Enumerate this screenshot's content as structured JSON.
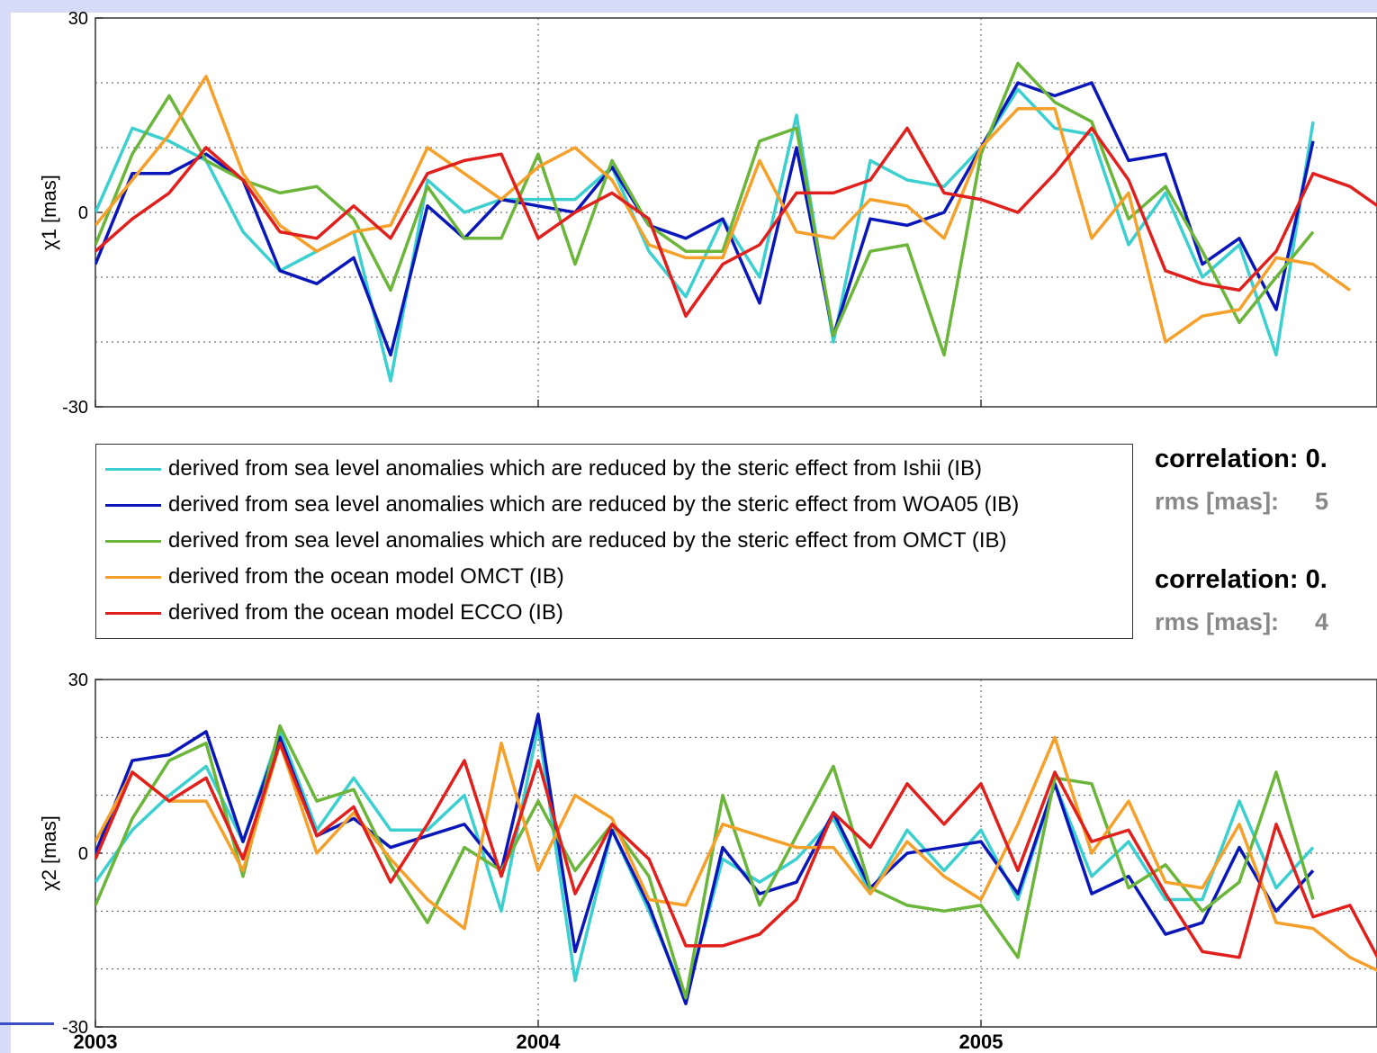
{
  "colors": {
    "ishii": "#3ccfd0",
    "woa05": "#0a17b8",
    "omct_steric": "#6ab53a",
    "omct": "#f5a02a",
    "ecco": "#e0201c"
  },
  "chart_data": [
    {
      "type": "line",
      "ylabel": "χ1 [mas]",
      "ylim": [
        -30,
        30
      ],
      "yticks": [
        -30,
        0,
        30
      ],
      "x_ticks": [
        "2003",
        "2004",
        "2005"
      ],
      "xlim_months": [
        0,
        36
      ],
      "grid": true,
      "series": [
        {
          "name": "derived from sea level anomalies which are reduced by the steric effect from Ishii (IB)",
          "color_key": "ishii",
          "values": [
            0,
            13,
            11,
            8,
            -3,
            -9,
            -6,
            -3,
            -26,
            5,
            0,
            2,
            2,
            2,
            7,
            -6,
            -13,
            -1,
            -10,
            15,
            -20,
            8,
            5,
            4,
            10,
            19,
            13,
            12,
            -5,
            3,
            -10,
            -5,
            -22,
            14
          ]
        },
        {
          "name": "derived from sea level anomalies which are reduced by the steric effect from WOA05 (IB)",
          "color_key": "woa05",
          "values": [
            -8,
            6,
            6,
            9,
            5,
            -9,
            -11,
            -7,
            -22,
            1,
            -4,
            2,
            1,
            0,
            7,
            -2,
            -4,
            -1,
            -14,
            10,
            -19,
            -1,
            -2,
            0,
            10,
            20,
            18,
            20,
            8,
            9,
            -8,
            -4,
            -15,
            11
          ]
        },
        {
          "name": "derived from sea level anomalies which are reduced by the steric effect from OMCT (IB)",
          "color_key": "omct_steric",
          "values": [
            -5,
            9,
            18,
            8,
            5,
            3,
            4,
            -1,
            -12,
            4,
            -4,
            -4,
            9,
            -8,
            8,
            -2,
            -6,
            -6,
            11,
            13,
            -19,
            -6,
            -5,
            -22,
            9,
            23,
            17,
            14,
            -1,
            4,
            -6,
            -17,
            -10,
            -3
          ]
        },
        {
          "name": "derived from the ocean model OMCT (IB)",
          "color_key": "omct",
          "values": [
            -2,
            5,
            12,
            21,
            6,
            -2,
            -6,
            -3,
            -2,
            10,
            6,
            2,
            7,
            10,
            5,
            -5,
            -7,
            -7,
            8,
            -3,
            -4,
            2,
            1,
            -4,
            10,
            16,
            16,
            -4,
            3,
            -20,
            -16,
            -15,
            -7,
            -8,
            -12
          ]
        },
        {
          "name": "derived from the ocean model ECCO (IB)",
          "color_key": "ecco",
          "values": [
            -6,
            -1,
            3,
            10,
            5,
            -3,
            -4,
            1,
            -4,
            6,
            8,
            9,
            -4,
            0,
            3,
            -1,
            -16,
            -8,
            -5,
            3,
            3,
            5,
            13,
            3,
            2,
            0,
            6,
            13,
            5,
            -9,
            -11,
            -12,
            -6,
            6,
            4,
            0
          ]
        }
      ]
    },
    {
      "type": "line",
      "ylabel": "χ2 [mas]",
      "ylim": [
        -30,
        30
      ],
      "yticks": [
        -30,
        0,
        30
      ],
      "x_ticks": [
        "2003",
        "2004",
        "2005"
      ],
      "xlim_months": [
        0,
        36
      ],
      "grid": true,
      "series": [
        {
          "name": "derived from sea level anomalies which are reduced by the steric effect from Ishii (IB)",
          "color_key": "ishii",
          "values": [
            -5,
            4,
            10,
            15,
            2,
            21,
            4,
            13,
            4,
            4,
            10,
            -10,
            22,
            -22,
            4,
            -10,
            -25,
            -1,
            -5,
            -1,
            6,
            -7,
            4,
            -3,
            4,
            -8,
            12,
            -4,
            2,
            -8,
            -8,
            9,
            -6,
            1
          ]
        },
        {
          "name": "derived from sea level anomalies which are reduced by the steric effect from WOA05 (IB)",
          "color_key": "woa05",
          "values": [
            0,
            16,
            17,
            21,
            2,
            20,
            3,
            6,
            1,
            3,
            5,
            -3,
            24,
            -17,
            4,
            -9,
            -26,
            1,
            -7,
            -5,
            7,
            -6,
            0,
            1,
            2,
            -7,
            12,
            -7,
            -4,
            -14,
            -12,
            1,
            -10,
            -3
          ]
        },
        {
          "name": "derived from sea level anomalies which are reduced by the steric effect from OMCT (IB)",
          "color_key": "omct_steric",
          "values": [
            -9,
            6,
            16,
            19,
            -4,
            22,
            9,
            11,
            -2,
            -12,
            1,
            -3,
            9,
            -3,
            5,
            -4,
            -25,
            10,
            -9,
            3,
            15,
            -6,
            -9,
            -10,
            -9,
            -18,
            13,
            12,
            -6,
            -2,
            -10,
            -5,
            14,
            -8
          ]
        },
        {
          "name": "derived from the ocean model OMCT (IB)",
          "color_key": "omct",
          "values": [
            2,
            14,
            9,
            9,
            -3,
            19,
            0,
            7,
            -1,
            -8,
            -13,
            19,
            -3,
            10,
            6,
            -8,
            -9,
            5,
            3,
            1,
            1,
            -7,
            2,
            -4,
            -8,
            5,
            20,
            0,
            9,
            -5,
            -6,
            5,
            -12,
            -13,
            -18,
            -21
          ]
        },
        {
          "name": "derived from the ocean model ECCO (IB)",
          "color_key": "ecco",
          "values": [
            -1,
            14,
            9,
            13,
            -1,
            19,
            3,
            8,
            -5,
            5,
            16,
            -4,
            16,
            -7,
            5,
            -1,
            -16,
            -16,
            -14,
            -8,
            7,
            1,
            12,
            5,
            12,
            -3,
            14,
            2,
            4,
            -7,
            -17,
            -18,
            5,
            -11,
            -9,
            -21,
            -21
          ]
        }
      ]
    }
  ],
  "legend": {
    "items": [
      {
        "label": "derived from sea level anomalies which are reduced by the steric effect from Ishii (IB)",
        "color_key": "ishii"
      },
      {
        "label": "derived from sea level anomalies which are reduced by the steric effect from WOA05 (IB)",
        "color_key": "woa05"
      },
      {
        "label": "derived from sea level anomalies which are reduced by the steric effect from OMCT (IB)",
        "color_key": "omct_steric"
      },
      {
        "label": "derived from the ocean model OMCT (IB)",
        "color_key": "omct"
      },
      {
        "label": "derived from the ocean model ECCO (IB)",
        "color_key": "ecco"
      }
    ]
  },
  "stats": [
    {
      "correlation": "correlation: 0.",
      "rms_label": "rms [mas]:",
      "rms_value": "5"
    },
    {
      "correlation": "correlation: 0.",
      "rms_label": "rms [mas]:",
      "rms_value": "4"
    }
  ]
}
